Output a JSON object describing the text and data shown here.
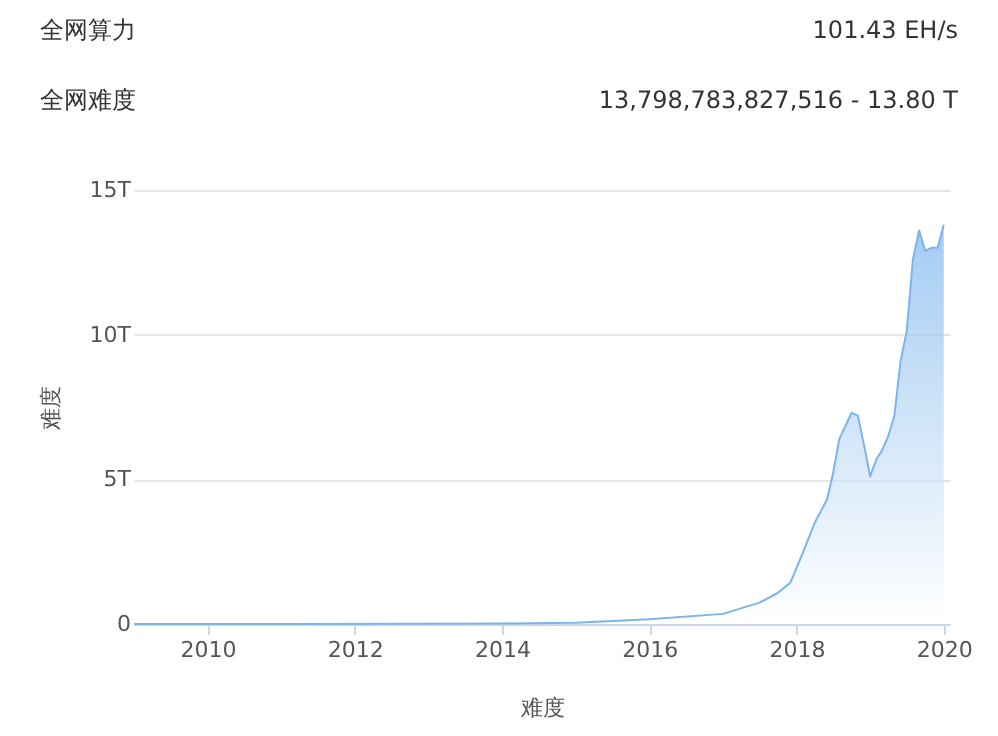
{
  "chart_data": {
    "type": "area",
    "xlabel": "难度",
    "ylabel": "难度",
    "annotations": [
      "全网算力",
      "101.43 EH/s",
      "全网难度",
      "13,798,783,827,516 - 13.80 T"
    ],
    "x": [
      "2009-01",
      "2011-01",
      "2013-01",
      "2014-01",
      "2015-01",
      "2016-01",
      "2017-01",
      "2017-07",
      "2017-10",
      "2017-12",
      "2018-02",
      "2018-04",
      "2018-06",
      "2018-07",
      "2018-08",
      "2018-10",
      "2018-11",
      "2018-12",
      "2019-01",
      "2019-02",
      "2019-03",
      "2019-04",
      "2019-05",
      "2019-06",
      "2019-07",
      "2019-08",
      "2019-09",
      "2019-10",
      "2019-11",
      "2019-12",
      "2020-01"
    ],
    "series": [
      {
        "color": "#7cb5ec",
        "values": [
          0,
          0,
          0.01,
          0.02,
          0.04,
          0.16,
          0.35,
          0.74,
          1.08,
          1.43,
          2.46,
          3.5,
          4.3,
          5.2,
          6.4,
          7.3,
          7.2,
          6.2,
          5.1,
          5.7,
          6.0,
          6.5,
          7.2,
          9.1,
          10.1,
          12.6,
          13.6,
          12.9,
          13.0,
          13.0,
          13.8
        ]
      }
    ],
    "xlim": [
      "2009-01-01",
      "2020-02-01"
    ],
    "xticks": [
      "2010",
      "2012",
      "2014",
      "2016",
      "2018",
      "2020"
    ],
    "ylim": [
      0,
      15
    ],
    "yticks": [
      0,
      {
        "value": 5,
        "label": "5T"
      },
      {
        "value": 10,
        "label": "10T"
      },
      {
        "value": 15,
        "label": "15T"
      }
    ],
    "grid": "y"
  }
}
